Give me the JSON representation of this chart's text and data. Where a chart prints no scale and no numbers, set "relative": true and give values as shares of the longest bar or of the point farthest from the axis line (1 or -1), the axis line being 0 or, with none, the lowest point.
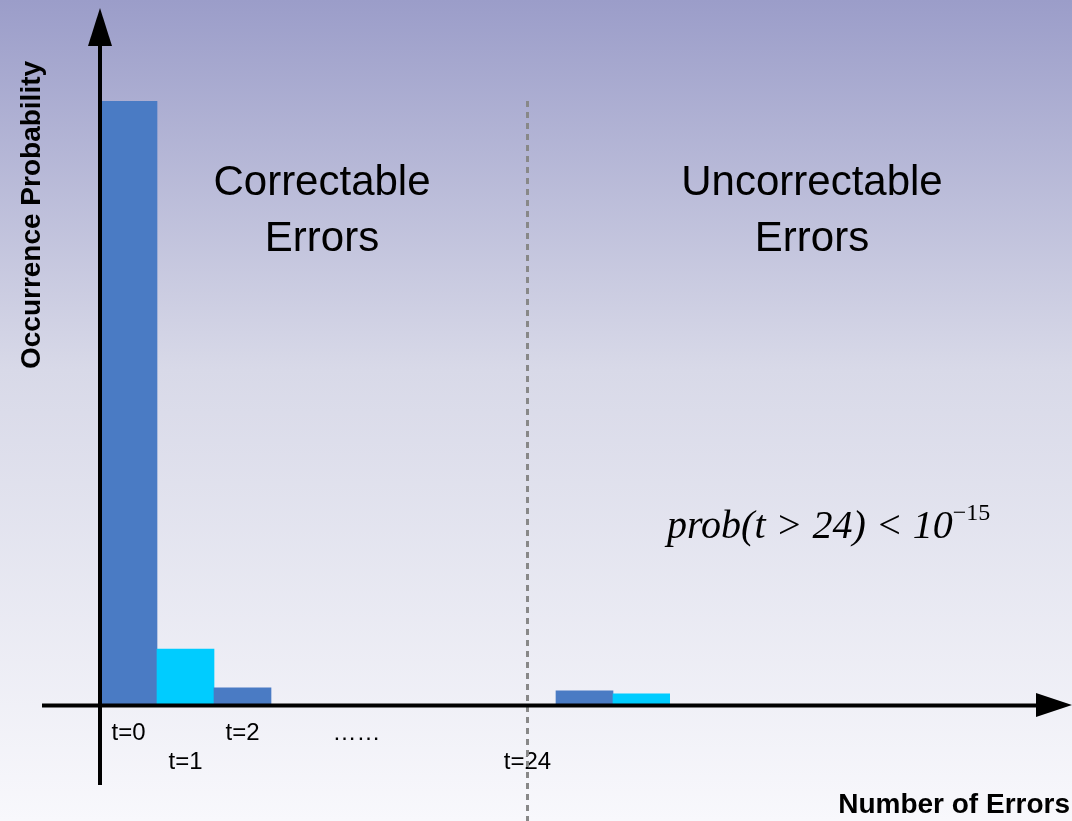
{
  "chart_data": {
    "type": "bar",
    "relative": true,
    "ylabel": "Occurrence Probability",
    "categories": [
      "t=0",
      "t=1",
      "t=2",
      null,
      "……",
      null,
      null,
      "t=24",
      null,
      null
    ],
    "values": [
      1,
      0.093,
      0.029,
      null,
      null,
      null,
      null,
      null,
      0.024,
      0.019
    ],
    "colors": [
      "#4a7bc4",
      "#00ccff",
      "#4a7bc4",
      null,
      null,
      null,
      null,
      null,
      "#4a7bc4",
      "#00ccff"
    ],
    "ref_lines": [
      {
        "axis": "x",
        "value": "t=24",
        "color": "#888888",
        "line_style": "dashed"
      }
    ],
    "annotations": [
      "Correctable Errors",
      "Uncorrectable Errors",
      "prob(t > 24) < 10$^{−15}$",
      "Number of Errors"
    ],
    "grid": false,
    "legend": false,
    "tick_labels": "x"
  }
}
